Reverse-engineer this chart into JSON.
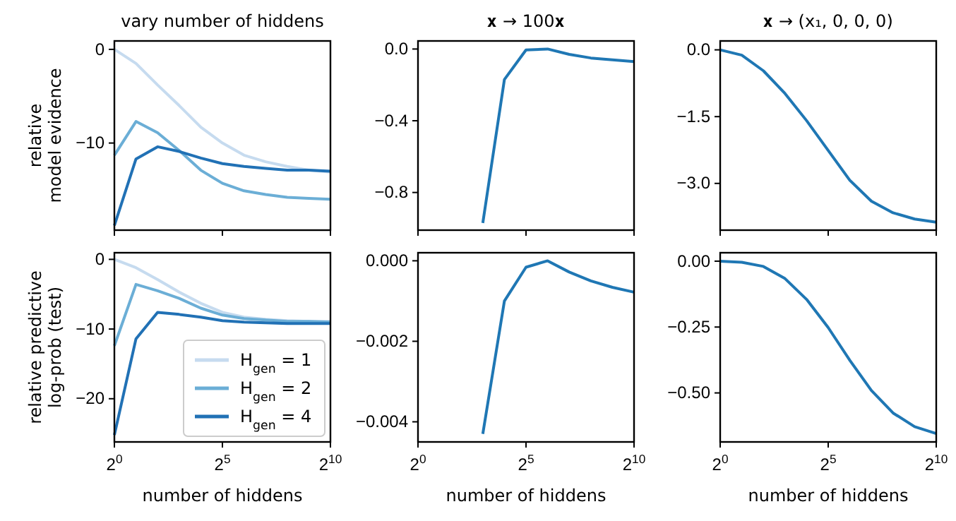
{
  "chart_data": [
    {
      "type": "line",
      "title": "vary number of hiddens",
      "ylabel": "relative\nmodel evidence",
      "log": "x",
      "x": [
        1,
        2,
        4,
        8,
        16,
        32,
        64,
        128,
        256,
        512,
        1024
      ],
      "xlim": [
        1,
        1024
      ],
      "xticks": [
        {
          "value": 1,
          "label": null
        },
        {
          "value": 32,
          "label": null
        },
        {
          "value": 1024,
          "label": null
        }
      ],
      "ylim": [
        -19.3,
        0.9
      ],
      "yticks": [
        {
          "value": 0,
          "label": "0"
        },
        {
          "value": -10,
          "label": "−10"
        }
      ],
      "tick_labels": "y",
      "series": [
        {
          "color": "#c6dbef",
          "values": [
            0,
            -1.5,
            -3.8,
            -6,
            -8.3,
            -10,
            -11.3,
            -12,
            -12.5,
            -12.9,
            -13.1
          ]
        },
        {
          "color": "#6baed6",
          "values": [
            -11.3,
            -7.7,
            -8.9,
            -10.8,
            -12.9,
            -14.3,
            -15.1,
            -15.5,
            -15.8,
            -15.9,
            -16
          ]
        },
        {
          "color": "#2171b5",
          "values": [
            -18.8,
            -11.7,
            -10.4,
            -10.9,
            -11.6,
            -12.2,
            -12.5,
            -12.7,
            -12.9,
            -12.9,
            -13
          ]
        }
      ]
    },
    {
      "type": "line",
      "title": "𝐱 → 100𝐱",
      "log": "x",
      "xlim": [
        1,
        1024
      ],
      "xticks": [
        {
          "value": 1,
          "label": null
        },
        {
          "value": 32,
          "label": null
        },
        {
          "value": 1024,
          "label": null
        }
      ],
      "ylim": [
        -1.01,
        0.045
      ],
      "yticks": [
        {
          "value": 0,
          "label": "0.0"
        },
        {
          "value": -0.4,
          "label": "−0.4"
        },
        {
          "value": -0.8,
          "label": "−0.8"
        }
      ],
      "tick_labels": "y",
      "series": [
        {
          "color": "#1f77b4",
          "x": [
            8,
            16,
            32,
            64,
            128,
            256,
            512,
            1024
          ],
          "values": [
            -0.97,
            -0.17,
            -0.005,
            0,
            -0.03,
            -0.05,
            -0.06,
            -0.07
          ]
        }
      ]
    },
    {
      "type": "line",
      "title": "𝐱 → (x₁, 0, 0, 0)",
      "log": "x",
      "x": [
        1,
        2,
        4,
        8,
        16,
        32,
        64,
        128,
        256,
        512,
        1024
      ],
      "xlim": [
        1,
        1024
      ],
      "xticks": [
        {
          "value": 1,
          "label": null
        },
        {
          "value": 32,
          "label": null
        },
        {
          "value": 1024,
          "label": null
        }
      ],
      "ylim": [
        -4.05,
        0.2
      ],
      "yticks": [
        {
          "value": 0,
          "label": "0.0"
        },
        {
          "value": -1.5,
          "label": "−1.5"
        },
        {
          "value": -3,
          "label": "−3.0"
        }
      ],
      "tick_labels": "y",
      "series": [
        {
          "color": "#1f77b4",
          "values": [
            0,
            -0.12,
            -0.47,
            -0.98,
            -1.59,
            -2.26,
            -2.93,
            -3.4,
            -3.66,
            -3.8,
            -3.87
          ]
        }
      ]
    },
    {
      "type": "line",
      "xlabel": "number of hiddens",
      "ylabel": "relative predictive\nlog-prob (test)",
      "log": "x",
      "x": [
        1,
        2,
        4,
        8,
        16,
        32,
        64,
        128,
        256,
        512,
        1024
      ],
      "xlim": [
        1,
        1024
      ],
      "xticks": [
        {
          "value": 1,
          "label": "2$^{0}$"
        },
        {
          "value": 32,
          "label": "2$^{5}$"
        },
        {
          "value": 1024,
          "label": "2$^{10}$"
        }
      ],
      "ylim": [
        -26.2,
        0.95
      ],
      "yticks": [
        {
          "value": 0,
          "label": "0"
        },
        {
          "value": -10,
          "label": "−10"
        },
        {
          "value": -20,
          "label": "−20"
        }
      ],
      "legend": "bottom right",
      "series": [
        {
          "name": "H$_{gen}$ = 1",
          "color": "#c6dbef",
          "values": [
            0,
            -1.2,
            -2.9,
            -4.7,
            -6.3,
            -7.6,
            -8.3,
            -8.6,
            -8.8,
            -8.9,
            -8.9
          ]
        },
        {
          "name": "H$_{gen}$ = 2",
          "color": "#6baed6",
          "values": [
            -12.4,
            -3.6,
            -4.5,
            -5.6,
            -7,
            -8,
            -8.5,
            -8.7,
            -8.9,
            -8.9,
            -9
          ]
        },
        {
          "name": "H$_{gen}$ = 4",
          "color": "#2171b5",
          "values": [
            -25.2,
            -11.4,
            -7.6,
            -7.9,
            -8.3,
            -8.8,
            -9,
            -9.1,
            -9.2,
            -9.2,
            -9.2
          ]
        }
      ]
    },
    {
      "type": "line",
      "xlabel": "number of hiddens",
      "log": "x",
      "xlim": [
        1,
        1024
      ],
      "xticks": [
        {
          "value": 1,
          "label": "2$^{0}$"
        },
        {
          "value": 32,
          "label": "2$^{5}$"
        },
        {
          "value": 1024,
          "label": "2$^{10}$"
        }
      ],
      "ylim": [
        -0.0045,
        0.0002
      ],
      "yticks": [
        {
          "value": 0,
          "label": "0.000"
        },
        {
          "value": -0.002,
          "label": "−0.002"
        },
        {
          "value": -0.004,
          "label": "−0.004"
        }
      ],
      "series": [
        {
          "color": "#1f77b4",
          "x": [
            8,
            16,
            32,
            64,
            128,
            256,
            512,
            1024
          ],
          "values": [
            -0.0043,
            -0.001,
            -0.00016,
            0,
            -0.00028,
            -0.0005,
            -0.00066,
            -0.00078
          ]
        }
      ]
    },
    {
      "type": "line",
      "xlabel": "number of hiddens",
      "log": "x",
      "x": [
        1,
        2,
        4,
        8,
        16,
        32,
        64,
        128,
        256,
        512,
        1024
      ],
      "xlim": [
        1,
        1024
      ],
      "xticks": [
        {
          "value": 1,
          "label": "2$^{0}$"
        },
        {
          "value": 32,
          "label": "2$^{5}$"
        },
        {
          "value": 1024,
          "label": "2$^{10}$"
        }
      ],
      "ylim": [
        -0.686,
        0.032
      ],
      "yticks": [
        {
          "value": 0,
          "label": "0.00"
        },
        {
          "value": -0.25,
          "label": "−0.25"
        },
        {
          "value": -0.5,
          "label": "−0.50"
        }
      ],
      "series": [
        {
          "color": "#1f77b4",
          "values": [
            0,
            -0.004,
            -0.02,
            -0.066,
            -0.145,
            -0.252,
            -0.376,
            -0.491,
            -0.576,
            -0.628,
            -0.654
          ]
        }
      ]
    }
  ]
}
